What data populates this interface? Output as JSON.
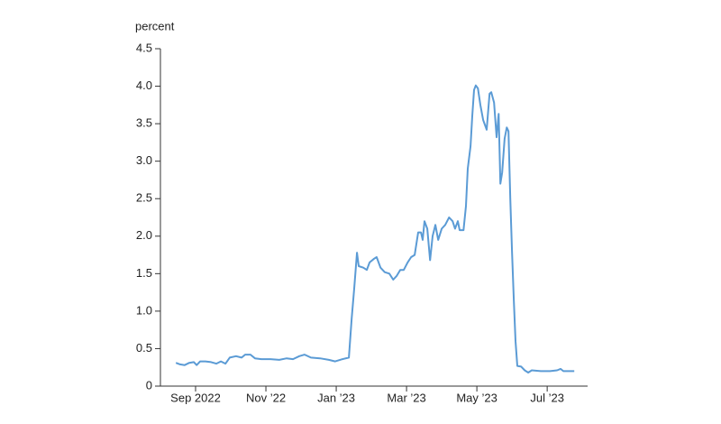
{
  "chart_data": {
    "type": "line",
    "y_label": "percent",
    "x": [
      -0.56,
      -0.44,
      -0.31,
      -0.18,
      -0.05,
      0.03,
      0.13,
      0.28,
      0.44,
      0.59,
      0.72,
      0.85,
      0.97,
      1.15,
      1.31,
      1.41,
      1.56,
      1.69,
      1.87,
      2.13,
      2.38,
      2.59,
      2.77,
      2.95,
      3.1,
      3.28,
      3.54,
      3.79,
      3.97,
      4.18,
      4.36,
      4.44,
      4.51,
      4.59,
      4.64,
      4.77,
      4.87,
      4.95,
      5.08,
      5.15,
      5.26,
      5.38,
      5.51,
      5.62,
      5.72,
      5.82,
      5.92,
      6.03,
      6.13,
      6.23,
      6.33,
      6.41,
      6.46,
      6.51,
      6.59,
      6.67,
      6.74,
      6.82,
      6.9,
      7.0,
      7.1,
      7.21,
      7.31,
      7.38,
      7.46,
      7.51,
      7.62,
      7.69,
      7.74,
      7.82,
      7.87,
      7.92,
      7.97,
      8.03,
      8.1,
      8.18,
      8.28,
      8.36,
      8.41,
      8.49,
      8.56,
      8.62,
      8.67,
      8.72,
      8.79,
      8.85,
      8.9,
      8.95,
      9.0,
      9.05,
      9.1,
      9.15,
      9.26,
      9.36,
      9.46,
      9.56,
      9.82,
      10.08,
      10.28,
      10.38,
      10.46,
      10.59,
      10.77
    ],
    "series": [
      {
        "color": "#5b9bd5",
        "values": [
          0.31,
          0.29,
          0.28,
          0.31,
          0.32,
          0.28,
          0.33,
          0.33,
          0.32,
          0.3,
          0.33,
          0.3,
          0.38,
          0.4,
          0.38,
          0.42,
          0.42,
          0.37,
          0.36,
          0.36,
          0.35,
          0.37,
          0.36,
          0.4,
          0.42,
          0.38,
          0.37,
          0.35,
          0.33,
          0.36,
          0.38,
          0.9,
          1.3,
          1.78,
          1.6,
          1.58,
          1.55,
          1.65,
          1.7,
          1.72,
          1.58,
          1.52,
          1.5,
          1.42,
          1.47,
          1.55,
          1.55,
          1.65,
          1.72,
          1.75,
          2.05,
          2.05,
          1.95,
          2.2,
          2.1,
          1.68,
          2.0,
          2.15,
          1.95,
          2.1,
          2.15,
          2.25,
          2.2,
          2.1,
          2.2,
          2.08,
          2.08,
          2.4,
          2.9,
          3.2,
          3.6,
          3.95,
          4.01,
          3.97,
          3.75,
          3.55,
          3.42,
          3.9,
          3.92,
          3.78,
          3.32,
          3.63,
          2.7,
          2.85,
          3.3,
          3.45,
          3.4,
          2.5,
          1.8,
          1.15,
          0.6,
          0.27,
          0.26,
          0.21,
          0.18,
          0.21,
          0.2,
          0.2,
          0.21,
          0.23,
          0.2,
          0.2,
          0.2
        ]
      }
    ],
    "xlim": [
      -1,
      11.15
    ],
    "xticks": [
      {
        "value": 0,
        "label": "Sep 2022"
      },
      {
        "value": 2,
        "label": "Nov ’22"
      },
      {
        "value": 4,
        "label": "Jan ’23"
      },
      {
        "value": 6,
        "label": "Mar ’23"
      },
      {
        "value": 8,
        "label": "May ’23"
      },
      {
        "value": 10,
        "label": "Jul ’23"
      }
    ],
    "ylim": [
      0,
      4.5
    ],
    "yticks": [
      0,
      0.5,
      {
        "value": 1,
        "label": "1.0"
      },
      1.5,
      {
        "value": 2,
        "label": "2.0"
      },
      2.5,
      {
        "value": 3,
        "label": "3.0"
      },
      3.5,
      {
        "value": 4,
        "label": "4.0"
      },
      4.5
    ],
    "grid": false
  }
}
